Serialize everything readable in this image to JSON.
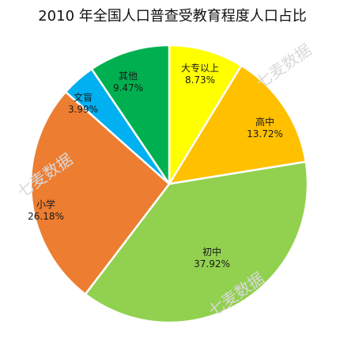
{
  "chart_data": {
    "type": "pie",
    "title": "2010 年全国人口普查受教育程度人口占比",
    "slices": [
      {
        "label": "大专以上",
        "value": 8.73,
        "display": "8.73%",
        "color": "#FFFF00"
      },
      {
        "label": "高中",
        "value": 13.72,
        "display": "13.72%",
        "color": "#FFC000"
      },
      {
        "label": "初中",
        "value": 37.92,
        "display": "37.92%",
        "color": "#92D050"
      },
      {
        "label": "小学",
        "value": 26.18,
        "display": "26.18%",
        "color": "#ED7D31"
      },
      {
        "label": "文盲",
        "value": 3.99,
        "display": "3.99%",
        "color": "#00B0F0"
      },
      {
        "label": "其他",
        "value": 9.47,
        "display": "9.47%",
        "color": "#00B050"
      }
    ],
    "start": "top",
    "direction": "clockwise"
  },
  "watermark": "七麦数据"
}
